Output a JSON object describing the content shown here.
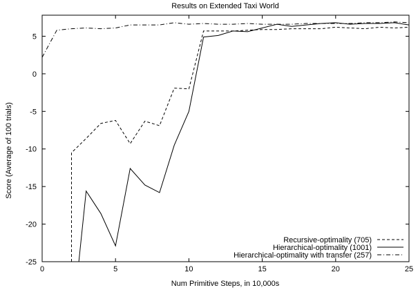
{
  "chart_data": {
    "type": "line",
    "title": "Results on Extended Taxi World",
    "xlabel": "Num Primitive Steps, in 10,000s",
    "ylabel": "Score (Average of 100 trials)",
    "xlim": [
      0,
      25
    ],
    "ylim": [
      -25,
      7.8
    ],
    "xticks": [
      0,
      5,
      10,
      15,
      20,
      25
    ],
    "yticks": [
      -25,
      -20,
      -15,
      -10,
      -5,
      0,
      5
    ],
    "grid": false,
    "legend_position": "bottom-right",
    "series": [
      {
        "name": "Recursive-optimality (705)",
        "style": "dashed",
        "x": [
          2,
          2,
          3,
          4,
          5,
          6,
          7,
          8,
          9,
          10,
          11,
          12,
          13,
          14,
          15,
          16,
          17,
          18,
          19,
          20,
          21,
          22,
          23,
          24,
          25
        ],
        "y": [
          -25,
          -10.5,
          -8.6,
          -6.6,
          -6.2,
          -9.3,
          -6.3,
          -6.9,
          -1.9,
          -2.0,
          5.7,
          5.7,
          5.7,
          5.8,
          5.9,
          5.9,
          6.0,
          6.0,
          6.0,
          6.2,
          6.1,
          6.0,
          6.2,
          6.1,
          6.2
        ]
      },
      {
        "name": "Hierarchical-optimality (1001)",
        "style": "solid",
        "x": [
          2.5,
          3,
          4,
          5,
          6,
          7,
          8,
          9,
          10,
          11,
          12,
          13,
          14,
          15,
          16,
          17,
          18,
          19,
          20,
          21,
          22,
          23,
          24,
          25
        ],
        "y": [
          -25,
          -15.6,
          -18.6,
          -22.9,
          -12.6,
          -14.8,
          -15.8,
          -9.5,
          -5.0,
          4.9,
          5.1,
          5.7,
          5.6,
          6.1,
          6.6,
          6.3,
          6.5,
          6.7,
          6.8,
          6.6,
          6.7,
          6.7,
          6.8,
          6.5
        ]
      },
      {
        "name": "Hierarchical-optimality with transfer (257)",
        "style": "dashdot",
        "x": [
          0,
          1,
          2,
          3,
          4,
          5,
          6,
          7,
          8,
          9,
          10,
          11,
          12,
          13,
          14,
          15,
          16,
          17,
          18,
          19,
          20,
          21,
          22,
          23,
          24,
          25
        ],
        "y": [
          2.2,
          5.8,
          6.0,
          6.1,
          6.0,
          6.1,
          6.5,
          6.5,
          6.5,
          6.8,
          6.6,
          6.7,
          6.6,
          6.6,
          6.7,
          6.6,
          6.6,
          6.6,
          6.7,
          6.7,
          6.7,
          6.7,
          6.8,
          6.8,
          6.9,
          6.8
        ]
      }
    ]
  }
}
